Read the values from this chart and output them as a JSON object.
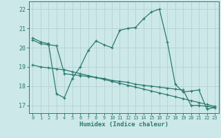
{
  "xlabel": "Humidex (Indice chaleur)",
  "background_color": "#cde8e8",
  "grid_color": "#b8d4d4",
  "line_color": "#2a7a72",
  "xticks": [
    0,
    1,
    2,
    3,
    4,
    5,
    6,
    7,
    8,
    9,
    10,
    11,
    12,
    13,
    14,
    15,
    16,
    17,
    18,
    19,
    20,
    21,
    22,
    23
  ],
  "yticks": [
    17,
    18,
    19,
    20,
    21,
    22
  ],
  "xlim": [
    -0.5,
    23.5
  ],
  "ylim": [
    16.6,
    22.4
  ],
  "series1_x": [
    0,
    1,
    2,
    3,
    4,
    5,
    6,
    7,
    8,
    9,
    10,
    11,
    12,
    13,
    14,
    15,
    16,
    17,
    18,
    19,
    20,
    21,
    22,
    23
  ],
  "series1_y": [
    20.5,
    20.3,
    20.2,
    17.6,
    17.4,
    18.4,
    19.0,
    19.85,
    20.35,
    20.15,
    20.0,
    20.9,
    21.0,
    21.05,
    21.5,
    21.85,
    22.0,
    20.3,
    18.1,
    17.7,
    17.75,
    17.8,
    16.8,
    16.9
  ],
  "series2_x": [
    0,
    1,
    2,
    3,
    4,
    5,
    6,
    7,
    8,
    9,
    10,
    11,
    12,
    13,
    14,
    15,
    16,
    17,
    18,
    19,
    20,
    21,
    22,
    23
  ],
  "series2_y": [
    20.4,
    20.2,
    20.15,
    20.1,
    18.65,
    18.6,
    18.55,
    18.5,
    18.45,
    18.4,
    18.3,
    18.25,
    18.2,
    18.1,
    18.05,
    18.0,
    17.95,
    17.9,
    17.85,
    17.8,
    17.0,
    17.0,
    16.95,
    16.9
  ],
  "series3_x": [
    0,
    1,
    2,
    3,
    4,
    5,
    6,
    7,
    8,
    9,
    10,
    11,
    12,
    13,
    14,
    15,
    16,
    17,
    18,
    19,
    20,
    21,
    22,
    23
  ],
  "series3_y": [
    19.1,
    19.0,
    18.95,
    18.9,
    18.85,
    18.75,
    18.65,
    18.55,
    18.45,
    18.35,
    18.25,
    18.15,
    18.05,
    17.95,
    17.85,
    17.75,
    17.65,
    17.55,
    17.45,
    17.35,
    17.25,
    17.15,
    17.05,
    16.95
  ]
}
